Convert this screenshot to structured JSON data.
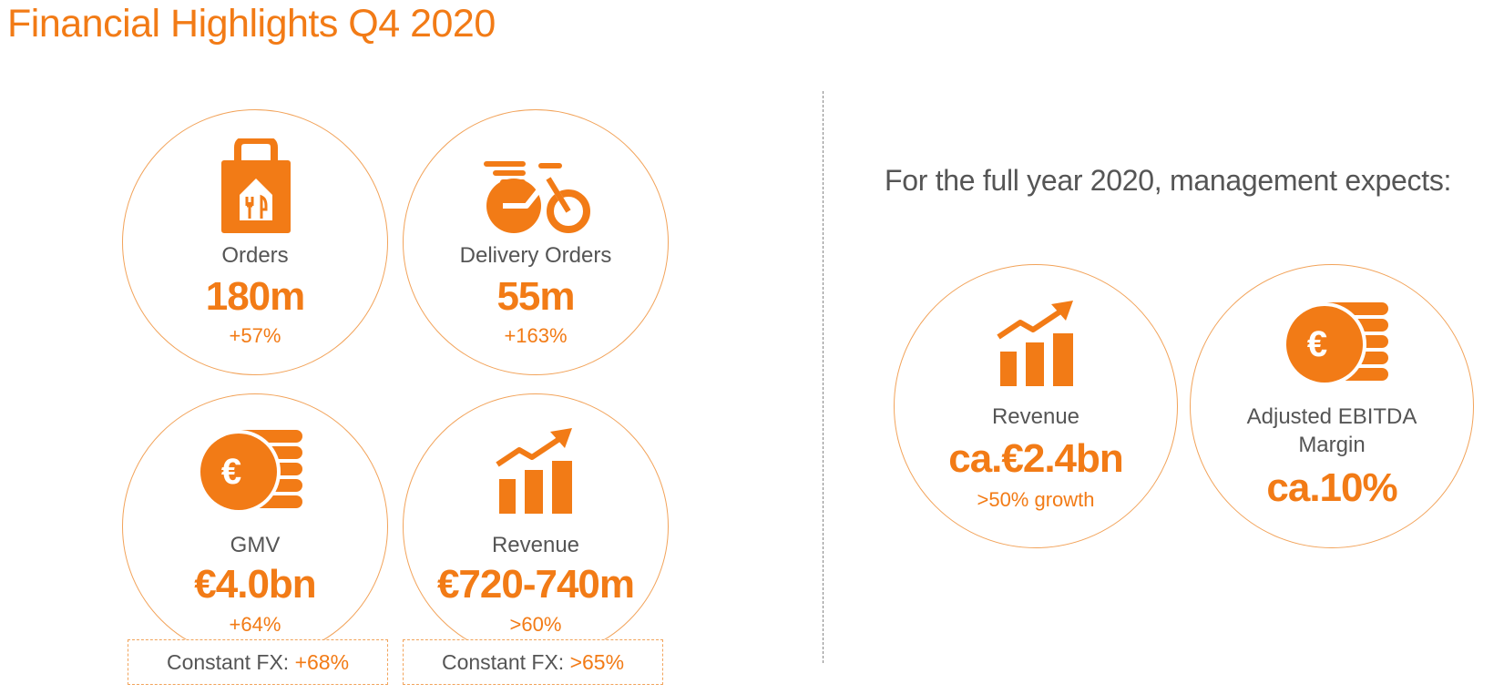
{
  "title": "Financial Highlights Q4 2020",
  "accent_color": "#f27b16",
  "q4": {
    "orders": {
      "icon": "shopping-bag-icon",
      "label": "Orders",
      "value": "180m",
      "change": "+57%"
    },
    "delivery_orders": {
      "icon": "bicycle-icon",
      "label": "Delivery Orders",
      "value": "55m",
      "change": "+163%"
    },
    "gmv": {
      "icon": "euro-coins-icon",
      "label": "GMV",
      "value": "€4.0bn",
      "change": "+64%",
      "fx_label": "Constant FX:",
      "fx_value": "+68%"
    },
    "revenue": {
      "icon": "growth-chart-icon",
      "label": "Revenue",
      "value": "€720-740m",
      "change": ">60%",
      "fx_label": "Constant FX:",
      "fx_value": ">65%"
    }
  },
  "full_year": {
    "heading": "For the full year 2020, management expects:",
    "revenue": {
      "icon": "growth-chart-icon",
      "label": "Revenue",
      "value": "ca.€2.4bn",
      "change": ">50% growth"
    },
    "ebitda": {
      "icon": "euro-coins-icon",
      "label_line1": "Adjusted EBITDA",
      "label_line2": "Margin",
      "value": "ca.10%"
    }
  }
}
